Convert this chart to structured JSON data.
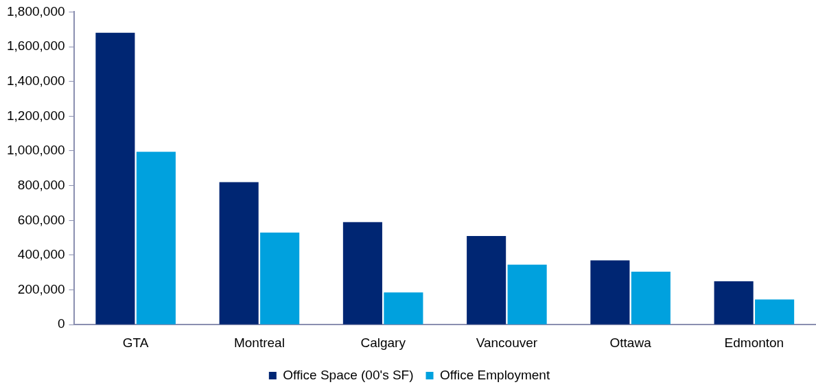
{
  "chart_data": {
    "type": "bar",
    "categories": [
      "GTA",
      "Montreal",
      "Calgary",
      "Vancouver",
      "Ottawa",
      "Edmonton"
    ],
    "series": [
      {
        "name": "Office Space (00's SF)",
        "color": "#002673",
        "values": [
          1680000,
          820000,
          590000,
          510000,
          370000,
          250000
        ]
      },
      {
        "name": "Office Employment",
        "color": "#00a1de",
        "values": [
          995000,
          530000,
          185000,
          345000,
          305000,
          145000
        ]
      }
    ],
    "ylim": [
      0,
      1800000
    ],
    "yticks": [
      0,
      {
        "value": 200000,
        "label": "200,000"
      },
      {
        "value": 400000,
        "label": "400,000"
      },
      {
        "value": 600000,
        "label": "600,000"
      },
      {
        "value": 800000,
        "label": "800,000"
      },
      {
        "value": 1000000,
        "label": "1,000,000"
      },
      {
        "value": 1200000,
        "label": "1,200,000"
      },
      {
        "value": 1400000,
        "label": "1,400,000"
      },
      {
        "value": 1600000,
        "label": "1,600,000"
      },
      {
        "value": 1800000,
        "label": "1,800,000"
      }
    ],
    "grid": false,
    "legend": "bottom"
  }
}
